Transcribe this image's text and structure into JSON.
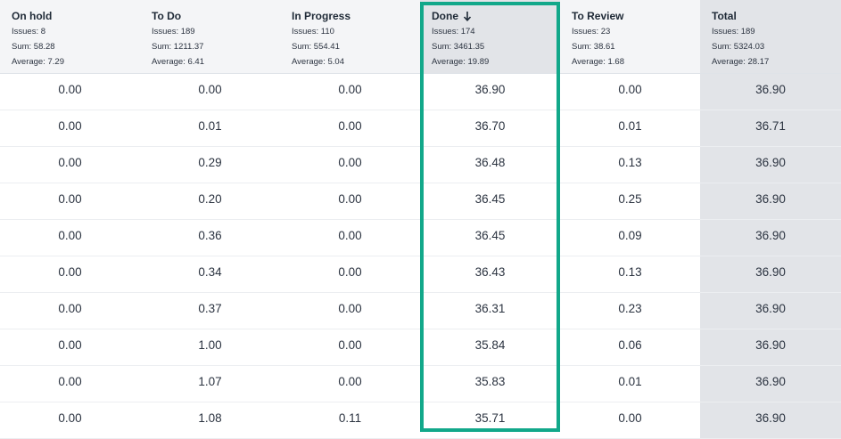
{
  "columns": [
    {
      "title": "On hold",
      "issues": "Issues: 8",
      "sum": "Sum: 58.28",
      "average": "Average: 7.29"
    },
    {
      "title": "To Do",
      "issues": "Issues: 189",
      "sum": "Sum: 1211.37",
      "average": "Average: 6.41"
    },
    {
      "title": "In Progress",
      "issues": "Issues: 110",
      "sum": "Sum: 554.41",
      "average": "Average: 5.04"
    },
    {
      "title": "Done",
      "issues": "Issues: 174",
      "sum": "Sum: 3461.35",
      "average": "Average: 19.89",
      "sort_icon": "arrow-down-icon"
    },
    {
      "title": "To Review",
      "issues": "Issues: 23",
      "sum": "Sum: 38.61",
      "average": "Average: 1.68"
    },
    {
      "title": "Total",
      "issues": "Issues: 189",
      "sum": "Sum: 5324.03",
      "average": "Average: 28.17"
    }
  ],
  "rows": [
    [
      "0.00",
      "0.00",
      "0.00",
      "36.90",
      "0.00",
      "36.90"
    ],
    [
      "0.00",
      "0.01",
      "0.00",
      "36.70",
      "0.01",
      "36.71"
    ],
    [
      "0.00",
      "0.29",
      "0.00",
      "36.48",
      "0.13",
      "36.90"
    ],
    [
      "0.00",
      "0.20",
      "0.00",
      "36.45",
      "0.25",
      "36.90"
    ],
    [
      "0.00",
      "0.36",
      "0.00",
      "36.45",
      "0.09",
      "36.90"
    ],
    [
      "0.00",
      "0.34",
      "0.00",
      "36.43",
      "0.13",
      "36.90"
    ],
    [
      "0.00",
      "0.37",
      "0.00",
      "36.31",
      "0.23",
      "36.90"
    ],
    [
      "0.00",
      "1.00",
      "0.00",
      "35.84",
      "0.06",
      "36.90"
    ],
    [
      "0.00",
      "1.07",
      "0.00",
      "35.83",
      "0.01",
      "36.90"
    ],
    [
      "0.00",
      "1.08",
      "0.11",
      "35.71",
      "0.00",
      "36.90"
    ]
  ],
  "colors": {
    "highlight": "#12a88a",
    "header_bg": "#f4f5f7",
    "total_bg": "#e2e4e8"
  }
}
